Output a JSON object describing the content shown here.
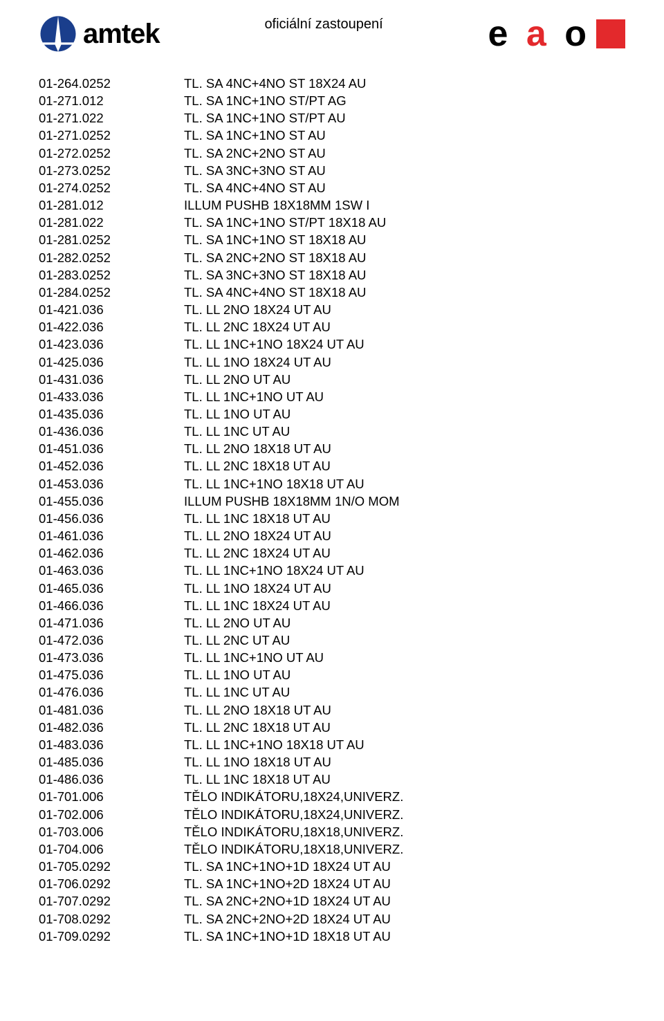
{
  "header": {
    "left_logo_word": "amtek",
    "center_text": "oficiální zastoupení",
    "right_logo_e": "e",
    "right_logo_a": "a",
    "right_logo_o": "o",
    "colors": {
      "amtek_blue": "#1a3e8c",
      "eao_red": "#e3292c",
      "text": "#000000",
      "background": "#ffffff"
    }
  },
  "rows": [
    {
      "code": "01-264.0252",
      "desc": "TL. SA 4NC+4NO ST 18X24 AU"
    },
    {
      "code": "01-271.012",
      "desc": "TL. SA 1NC+1NO ST/PT AG"
    },
    {
      "code": "01-271.022",
      "desc": "TL. SA 1NC+1NO ST/PT AU"
    },
    {
      "code": "01-271.0252",
      "desc": "TL. SA 1NC+1NO ST AU"
    },
    {
      "code": "01-272.0252",
      "desc": "TL. SA 2NC+2NO ST AU"
    },
    {
      "code": "01-273.0252",
      "desc": "TL. SA 3NC+3NO ST AU"
    },
    {
      "code": "01-274.0252",
      "desc": "TL. SA 4NC+4NO ST AU"
    },
    {
      "code": "01-281.012",
      "desc": "ILLUM PUSHB 18X18MM 1SW I"
    },
    {
      "code": "01-281.022",
      "desc": "TL. SA 1NC+1NO ST/PT 18X18 AU"
    },
    {
      "code": "01-281.0252",
      "desc": "TL. SA 1NC+1NO ST 18X18 AU"
    },
    {
      "code": "01-282.0252",
      "desc": "TL. SA 2NC+2NO ST 18X18 AU"
    },
    {
      "code": "01-283.0252",
      "desc": "TL. SA 3NC+3NO ST 18X18 AU"
    },
    {
      "code": "01-284.0252",
      "desc": "TL. SA 4NC+4NO ST 18X18 AU"
    },
    {
      "code": "01-421.036",
      "desc": "TL. LL 2NO 18X24 UT AU"
    },
    {
      "code": "01-422.036",
      "desc": "TL. LL 2NC 18X24 UT AU"
    },
    {
      "code": "01-423.036",
      "desc": "TL. LL 1NC+1NO 18X24 UT AU"
    },
    {
      "code": "01-425.036",
      "desc": "TL. LL 1NO 18X24 UT AU"
    },
    {
      "code": "01-431.036",
      "desc": "TL. LL 2NO UT AU"
    },
    {
      "code": "01-433.036",
      "desc": "TL. LL 1NC+1NO UT AU"
    },
    {
      "code": "01-435.036",
      "desc": "TL. LL 1NO UT AU"
    },
    {
      "code": "01-436.036",
      "desc": "TL. LL 1NC UT AU"
    },
    {
      "code": "01-451.036",
      "desc": "TL. LL 2NO 18X18 UT AU"
    },
    {
      "code": "01-452.036",
      "desc": "TL. LL 2NC 18X18 UT AU"
    },
    {
      "code": "01-453.036",
      "desc": "TL. LL 1NC+1NO 18X18 UT AU"
    },
    {
      "code": "01-455.036",
      "desc": "ILLUM PUSHB 18X18MM 1N/O MOM"
    },
    {
      "code": "01-456.036",
      "desc": "TL. LL 1NC 18X18 UT AU"
    },
    {
      "code": "01-461.036",
      "desc": "TL. LL 2NO 18X24 UT AU"
    },
    {
      "code": "01-462.036",
      "desc": "TL. LL 2NC 18X24 UT AU"
    },
    {
      "code": "01-463.036",
      "desc": "TL. LL 1NC+1NO 18X24 UT AU"
    },
    {
      "code": "01-465.036",
      "desc": "TL. LL 1NO 18X24 UT AU"
    },
    {
      "code": "01-466.036",
      "desc": "TL. LL 1NC 18X24 UT AU"
    },
    {
      "code": "01-471.036",
      "desc": "TL. LL 2NO UT AU"
    },
    {
      "code": "01-472.036",
      "desc": "TL. LL 2NC UT AU"
    },
    {
      "code": "01-473.036",
      "desc": "TL. LL 1NC+1NO UT AU"
    },
    {
      "code": "01-475.036",
      "desc": "TL. LL 1NO UT AU"
    },
    {
      "code": "01-476.036",
      "desc": "TL. LL 1NC UT AU"
    },
    {
      "code": "01-481.036",
      "desc": "TL. LL 2NO 18X18 UT AU"
    },
    {
      "code": "01-482.036",
      "desc": "TL. LL 2NC 18X18 UT AU"
    },
    {
      "code": "01-483.036",
      "desc": "TL. LL 1NC+1NO 18X18 UT AU"
    },
    {
      "code": "01-485.036",
      "desc": "TL. LL 1NO 18X18 UT AU"
    },
    {
      "code": "01-486.036",
      "desc": "TL. LL 1NC 18X18 UT AU"
    },
    {
      "code": "01-701.006",
      "desc": "TĚLO INDIKÁTORU,18X24,UNIVERZ."
    },
    {
      "code": "01-702.006",
      "desc": "TĚLO INDIKÁTORU,18X24,UNIVERZ."
    },
    {
      "code": "01-703.006",
      "desc": "TĚLO INDIKÁTORU,18X18,UNIVERZ."
    },
    {
      "code": "01-704.006",
      "desc": "TĚLO INDIKÁTORU,18X18,UNIVERZ."
    },
    {
      "code": "01-705.0292",
      "desc": "TL. SA 1NC+1NO+1D 18X24 UT AU"
    },
    {
      "code": "01-706.0292",
      "desc": "TL. SA 1NC+1NO+2D 18X24 UT AU"
    },
    {
      "code": "01-707.0292",
      "desc": "TL. SA 2NC+2NO+1D 18X24 UT AU"
    },
    {
      "code": "01-708.0292",
      "desc": "TL. SA 2NC+2NO+2D 18X24 UT AU"
    },
    {
      "code": "01-709.0292",
      "desc": "TL. SA 1NC+1NO+1D 18X18 UT AU"
    }
  ]
}
